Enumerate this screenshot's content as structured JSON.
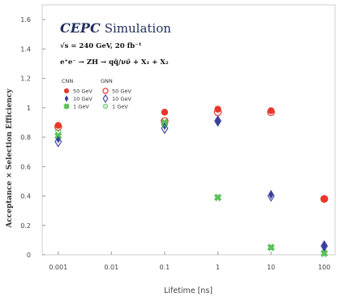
{
  "chart_data": {
    "type": "scatter",
    "title_bold": "CEPC",
    "title_rest": "Simulation",
    "annotation_line1": "√s = 240 GeV, 20 fb⁻¹",
    "annotation_line2": "e⁺e⁻ → ZH → qq̄/νν̄ + X₁ + X₂",
    "xlabel": "Lifetime [ns]",
    "ylabel": "Acceptance × Selection Efficiency",
    "xscale": "log",
    "xlim": [
      0.0005,
      160
    ],
    "ylim": [
      0,
      1.7
    ],
    "x_ticks": [
      0.001,
      0.01,
      0.1,
      1,
      10,
      100
    ],
    "x_tick_labels": [
      "0.001",
      "0.01",
      "0.1",
      "1",
      "10",
      "100"
    ],
    "y_ticks": [
      0,
      0.2,
      0.4,
      0.6,
      0.8,
      1,
      1.2,
      1.4,
      1.6
    ],
    "y_tick_labels": [
      "0",
      "0.2",
      "0.4",
      "0.6",
      "0.8",
      "1",
      "1.2",
      "1.4",
      "1.6"
    ],
    "grid": false,
    "legend_placement": "upper-left",
    "legend_headers": [
      "CNN",
      "GNN"
    ],
    "series": [
      {
        "name": "50 GeV",
        "group": "CNN",
        "marker": "filled-circle",
        "color": "#e8372c",
        "x": [
          0.001,
          0.1,
          1,
          10,
          100
        ],
        "y": [
          0.88,
          0.97,
          0.99,
          0.98,
          0.38
        ]
      },
      {
        "name": "10 GeV",
        "group": "CNN",
        "marker": "filled-diamond",
        "color": "#3a3f9e",
        "x": [
          0.001,
          0.1,
          1,
          10,
          100
        ],
        "y": [
          0.79,
          0.88,
          0.91,
          0.41,
          0.06
        ]
      },
      {
        "name": "1 GeV",
        "group": "CNN",
        "marker": "filled-x",
        "color": "#5cc15a",
        "x": [
          0.001,
          0.1,
          1,
          10,
          100
        ],
        "y": [
          0.81,
          0.9,
          0.39,
          0.05,
          0.01
        ]
      },
      {
        "name": "50 GeV",
        "group": "GNN",
        "marker": "open-circle",
        "color": "#e8372c",
        "x": [
          0.001,
          0.1,
          1,
          10,
          100
        ],
        "y": [
          0.87,
          0.91,
          0.97,
          0.97,
          0.38
        ]
      },
      {
        "name": "10 GeV",
        "group": "GNN",
        "marker": "open-diamond",
        "color": "#3a3f9e",
        "x": [
          0.001,
          0.1,
          1,
          10,
          100
        ],
        "y": [
          0.77,
          0.86,
          0.91,
          0.4,
          0.06
        ]
      },
      {
        "name": "1 GeV",
        "group": "GNN",
        "marker": "open-x",
        "color": "#5cc15a",
        "x": [
          0.001,
          0.1,
          1,
          10,
          100
        ],
        "y": [
          0.83,
          0.89,
          0.39,
          0.05,
          0.01
        ]
      }
    ]
  }
}
